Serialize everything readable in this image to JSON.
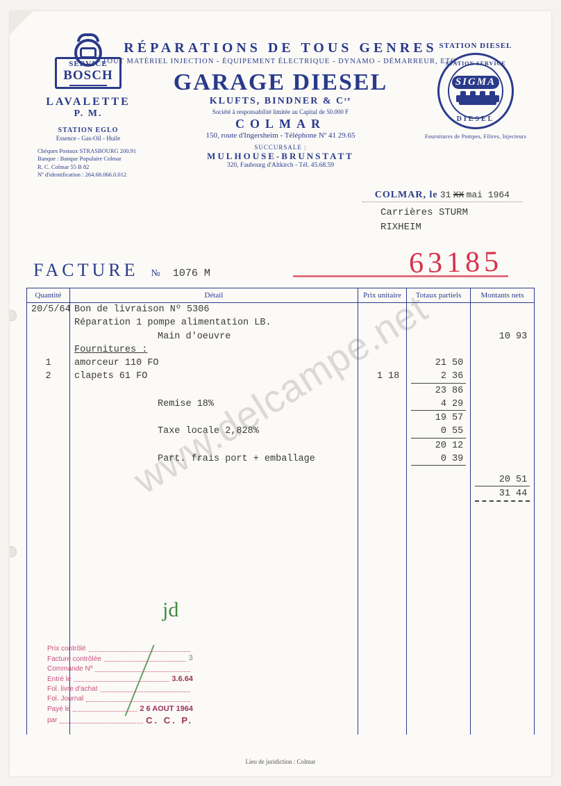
{
  "watermark": "www.delcampe.net",
  "header": {
    "top_line": "RÉPARATIONS DE TOUS GENRES",
    "sub_line": "TOUT MATÉRIEL INJECTION - ÉQUIPEMENT ÉLECTRIQUE - DYNAMO - DÉMARREUR, ETC.",
    "company": "GARAGE DIESEL",
    "owner": "KLUFTS, BINDNER & Cᶦᵉ",
    "legal": "Société à responsabilité limitée au Capital de 50.000 F",
    "city": "COLMAR",
    "address": "150, route d'Ingersheim - Téléphone Nº 41 29.65",
    "succ_label": "SUCCURSALE :",
    "succ_city": "MULHOUSE-BRUNSTATT",
    "succ_addr": "320, Faubourg d'Altkirch - Tél. 45.68.59"
  },
  "left": {
    "bosch_l1": "SERVICE",
    "bosch_l2": "BOSCH",
    "lavalette": "LAVALETTE",
    "pm": "P. M.",
    "station": "STATION EGLO",
    "station_sub": "Essence - Gas-Oil - Huile",
    "bank1": "Chèques Postaux STRASBOURG 200.91",
    "bank2": "Banque : Banque Populaire Colmar",
    "bank3": "R. C. Colmar 55 B 82",
    "bank4": "Nº d'identification : 264.68.066.0.012"
  },
  "right": {
    "label": "STATION DIESEL",
    "arc_top": "STATION SERVICE",
    "brand": "SIGMA",
    "arc_bot": "DIESEL",
    "caption": "Fournitures de Pompes, Filtres, Injecteurs"
  },
  "date": {
    "label": "COLMAR, le",
    "struck": "XX",
    "value_prefix": "31",
    "value_suffix": "mai 1964"
  },
  "client": {
    "line1": "Carrières STURM",
    "line2": "RIXHEIM"
  },
  "facture": {
    "label": "FACTURE",
    "no_label": "№",
    "number": "1076 M"
  },
  "red": "63185",
  "columns": {
    "qty": "Quantité",
    "det": "Détail",
    "pu": "Prix unitaire",
    "tp": "Totaux partiels",
    "mn": "Montants nets"
  },
  "lines": [
    {
      "qty": "20/5/64",
      "det": "Bon de livraison Nº 5306"
    },
    {
      "det": "Réparation 1 pompe alimentation LB."
    },
    {
      "det_indent": "Main d'oeuvre",
      "mn": "10 93"
    },
    {
      "det": "Fournitures :",
      "u": true
    },
    {
      "qty": "1",
      "det": "amorceur 110 FO",
      "tp": "21,50"
    },
    {
      "qty": "2",
      "det": "clapets 61 FO",
      "pu": "1 18",
      "tp": "2 36",
      "bb_tp": true
    },
    {
      "tp": "23 86"
    },
    {
      "det_indent": "Remise 18%",
      "tp": "4 29",
      "bb_tp": true
    },
    {
      "tp": "19 57"
    },
    {
      "det_indent": "Taxe locale 2,828%",
      "tp": "0 55",
      "bb_tp": true
    },
    {
      "tp": "20 12"
    },
    {
      "det_indent": "Part. frais port + emballage",
      "tp": "0 39",
      "bb_tp": true
    },
    {
      "spacer": true
    },
    {
      "mn": "20 51",
      "bb_mn": true
    },
    {
      "mn": "31 44",
      "dd_mn": true
    }
  ],
  "stamp": {
    "r1": "Prix contrôlé",
    "r2": "Facture contrôlée",
    "r2v": "3",
    "r3": "Commande Nº",
    "r4": "Entré le",
    "r4v": "3.6.64",
    "r5": "Fol. livre d'achat",
    "r6": "Fol. Journal",
    "r7": "Payé le",
    "r7v": "2 6 AOUT 1964",
    "r8": "par",
    "ccp": "C. C. P."
  },
  "green": "jd",
  "footer": "Lieu de juridiction : Colmar",
  "colors": {
    "ink": "#2a3a8a",
    "typed": "#3a3a3a",
    "red": "#d9304a",
    "stamp": "#c8457a",
    "green": "#3f8a3f",
    "paper": "#fbfaf7"
  }
}
